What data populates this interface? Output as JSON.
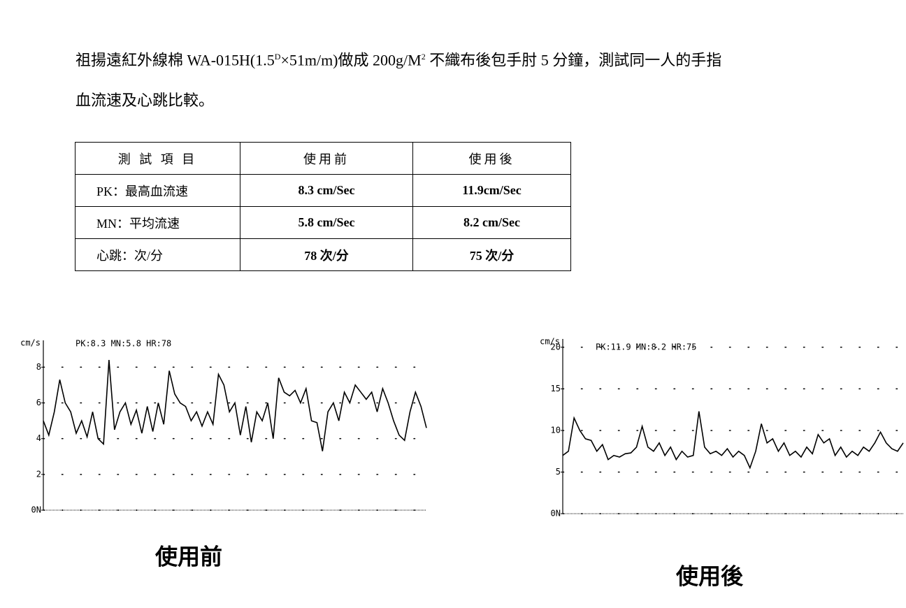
{
  "paragraph": {
    "lines": [
      [
        {
          "text": "祖揚遠紅外線棉 WA-015H(1.5"
        },
        {
          "sup": "D"
        },
        {
          "text": "×51m/m)做成 200g/M"
        },
        {
          "sup": "2"
        },
        {
          "text": " 不織布後包手肘 5 分鐘，測試同一人的手指"
        }
      ],
      [
        {
          "text": "血流速及心跳比較。"
        }
      ]
    ]
  },
  "table": {
    "header": [
      "測 試 項 目",
      "使用前",
      "使用後"
    ],
    "rows": [
      [
        "PK：最高血流速",
        "8.3 cm/Sec",
        "11.9cm/Sec"
      ],
      [
        "MN：平均流速",
        "5.8 cm/Sec",
        "8.2 cm/Sec"
      ],
      [
        "心跳：次/分",
        "78 次/分",
        "75 次/分"
      ]
    ]
  },
  "chart_data": [
    {
      "type": "line",
      "y_label": "cm/s",
      "annotation": "PK:8.3 MN:5.8 HR:78",
      "caption": "使用前",
      "color": "#000000",
      "grid": true,
      "ylim": [
        0,
        9.5
      ],
      "yticks": [
        {
          "value": 0,
          "label": "0N"
        },
        2,
        4,
        6,
        8
      ],
      "values": [
        5.0,
        4.2,
        5.5,
        7.3,
        6.0,
        5.5,
        4.3,
        5.0,
        4.1,
        5.5,
        4.0,
        3.7,
        8.4,
        4.5,
        5.5,
        6.0,
        4.8,
        5.6,
        4.3,
        5.8,
        4.4,
        6.0,
        4.8,
        7.8,
        6.5,
        6.0,
        5.8,
        5.0,
        5.5,
        4.7,
        5.5,
        4.8,
        7.6,
        7.0,
        5.5,
        6.0,
        4.2,
        5.8,
        3.8,
        5.5,
        5.0,
        6.0,
        4.0,
        7.4,
        6.6,
        6.4,
        6.7,
        6.0,
        6.8,
        5.0,
        4.9,
        3.3,
        5.5,
        6.0,
        5.0,
        6.6,
        6.0,
        7.0,
        6.6,
        6.2,
        6.6,
        5.5,
        6.8,
        6.0,
        5.0,
        4.2,
        3.9,
        5.5,
        6.6,
        5.8,
        4.6
      ]
    },
    {
      "type": "line",
      "y_label": "cm/s",
      "annotation": "PK:11.9 MN:8.2 HR:75",
      "caption": "使用後",
      "color": "#000000",
      "grid": true,
      "ylim": [
        0,
        21
      ],
      "yticks": [
        {
          "value": 0,
          "label": "0N"
        },
        5,
        10,
        15,
        20
      ],
      "values": [
        7.0,
        7.5,
        11.5,
        10.0,
        9.0,
        8.8,
        7.5,
        8.3,
        6.5,
        7.0,
        6.8,
        7.2,
        7.3,
        8.0,
        10.5,
        8.0,
        7.5,
        8.5,
        7.0,
        8.0,
        6.5,
        7.5,
        6.8,
        7.0,
        12.3,
        8.0,
        7.2,
        7.5,
        7.0,
        7.8,
        6.8,
        7.5,
        7.0,
        5.5,
        7.5,
        10.8,
        8.5,
        9.0,
        7.5,
        8.5,
        7.0,
        7.5,
        6.8,
        8.0,
        7.2,
        9.5,
        8.5,
        9.0,
        7.0,
        8.0,
        6.8,
        7.5,
        7.0,
        8.0,
        7.5,
        8.5,
        9.8,
        8.5,
        7.8,
        7.5,
        8.5
      ]
    }
  ]
}
